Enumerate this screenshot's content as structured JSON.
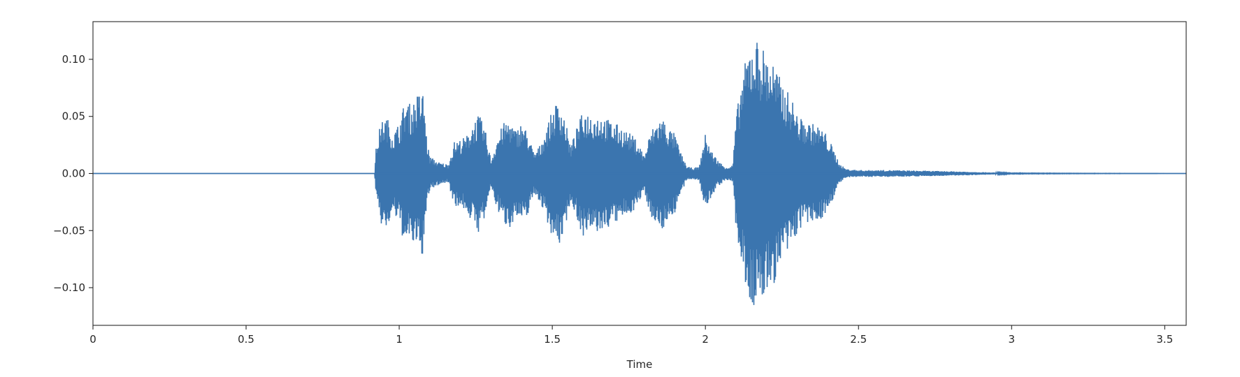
{
  "chart_data": {
    "type": "line",
    "title": "",
    "xlabel": "Time",
    "ylabel": "",
    "xlim": [
      0,
      3.57
    ],
    "ylim": [
      -0.133,
      0.133
    ],
    "xticks": [
      0,
      0.5,
      1,
      1.5,
      2,
      2.5,
      3,
      3.5
    ],
    "xtick_labels": [
      "0",
      "0.5",
      "1",
      "1.5",
      "2",
      "2.5",
      "3",
      "3.5"
    ],
    "yticks": [
      0.1,
      0.05,
      0.0,
      -0.05,
      -0.1
    ],
    "ytick_labels": [
      "0.10",
      "0.05",
      "0.00",
      "−0.05",
      "−0.10"
    ],
    "grid": false,
    "legend": "none",
    "series_color": "#3b75af",
    "waveform_envelope": {
      "description_of_values": "time (s) vs. amplitude of upper envelope; waveform is symmetric about 0",
      "time": [
        0,
        0.92,
        0.925,
        0.94,
        0.96,
        0.98,
        1.0,
        1.02,
        1.04,
        1.06,
        1.08,
        1.09,
        1.1,
        1.13,
        1.16,
        1.18,
        1.2,
        1.22,
        1.24,
        1.26,
        1.28,
        1.3,
        1.32,
        1.34,
        1.36,
        1.38,
        1.4,
        1.42,
        1.44,
        1.46,
        1.48,
        1.5,
        1.52,
        1.54,
        1.56,
        1.58,
        1.6,
        1.62,
        1.64,
        1.66,
        1.68,
        1.7,
        1.72,
        1.74,
        1.76,
        1.78,
        1.8,
        1.82,
        1.84,
        1.86,
        1.88,
        1.9,
        1.92,
        1.94,
        1.96,
        1.98,
        2.0,
        2.02,
        2.04,
        2.06,
        2.08,
        2.09,
        2.1,
        2.12,
        2.14,
        2.16,
        2.18,
        2.2,
        2.22,
        2.24,
        2.26,
        2.28,
        2.3,
        2.32,
        2.34,
        2.36,
        2.38,
        2.4,
        2.42,
        2.44,
        2.46,
        2.5,
        2.6,
        2.7,
        2.8,
        2.9,
        3.0,
        3.57
      ],
      "amplitude": [
        0,
        0,
        0.025,
        0.045,
        0.05,
        0.035,
        0.045,
        0.065,
        0.06,
        0.07,
        0.072,
        0.03,
        0.015,
        0.01,
        0.008,
        0.028,
        0.03,
        0.033,
        0.045,
        0.052,
        0.04,
        0.012,
        0.032,
        0.044,
        0.048,
        0.038,
        0.045,
        0.036,
        0.018,
        0.025,
        0.04,
        0.055,
        0.066,
        0.05,
        0.024,
        0.04,
        0.055,
        0.054,
        0.052,
        0.052,
        0.048,
        0.045,
        0.042,
        0.038,
        0.034,
        0.028,
        0.016,
        0.036,
        0.046,
        0.05,
        0.04,
        0.035,
        0.018,
        0.006,
        0.005,
        0.006,
        0.035,
        0.02,
        0.012,
        0.007,
        0.006,
        0.008,
        0.05,
        0.085,
        0.11,
        0.121,
        0.115,
        0.105,
        0.1,
        0.086,
        0.075,
        0.068,
        0.052,
        0.046,
        0.045,
        0.043,
        0.04,
        0.033,
        0.02,
        0.008,
        0.004,
        0.003,
        0.003,
        0.0025,
        0.002,
        0.0012,
        0.0003,
        0
      ]
    }
  }
}
